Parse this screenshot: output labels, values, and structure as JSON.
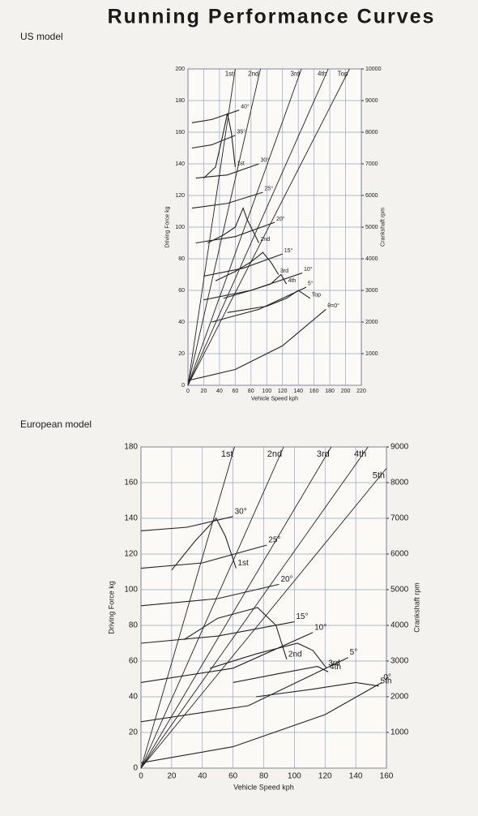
{
  "title": "Running Performance Curves",
  "chart_data": [
    {
      "type": "line",
      "title": "US model",
      "x_label": "Vehicle Speed kph",
      "y_label": "Driving Force kg",
      "y2_label": "Crankshaft rpm",
      "xlim": [
        0,
        220
      ],
      "xticks": [
        0,
        20,
        40,
        60,
        80,
        100,
        120,
        140,
        160,
        180,
        200,
        220
      ],
      "ylim": [
        0,
        200
      ],
      "yticks": [
        0,
        20,
        40,
        60,
        80,
        100,
        120,
        140,
        160,
        180,
        200
      ],
      "y2lim": [
        0,
        10000
      ],
      "y2ticks": [
        1000,
        2000,
        3000,
        4000,
        5000,
        6000,
        7000,
        8000,
        9000,
        10000
      ],
      "grid": true,
      "color": "#222222",
      "series": [
        {
          "name": "1st",
          "axis": "y2",
          "x": [
            0,
            60
          ],
          "values": [
            0,
            10000
          ]
        },
        {
          "name": "2nd",
          "axis": "y2",
          "x": [
            0,
            92
          ],
          "values": [
            0,
            10000
          ]
        },
        {
          "name": "3rd",
          "axis": "y2",
          "x": [
            0,
            144
          ],
          "values": [
            0,
            10000
          ]
        },
        {
          "name": "4th",
          "axis": "y2",
          "x": [
            0,
            178
          ],
          "values": [
            0,
            10000
          ]
        },
        {
          "name": "Top",
          "axis": "y2",
          "x": [
            0,
            205
          ],
          "values": [
            0,
            10000
          ]
        },
        {
          "name": "40°",
          "x": [
            5,
            30,
            65
          ],
          "values": [
            166,
            168,
            174
          ]
        },
        {
          "name": "35°",
          "x": [
            5,
            30,
            60
          ],
          "values": [
            150,
            152,
            158
          ]
        },
        {
          "name": "30°",
          "x": [
            10,
            50,
            90
          ],
          "values": [
            131,
            133,
            140
          ]
        },
        {
          "name": "25°",
          "x": [
            5,
            50,
            95
          ],
          "values": [
            112,
            115,
            122
          ]
        },
        {
          "name": "20°",
          "x": [
            10,
            60,
            110
          ],
          "values": [
            90,
            94,
            103
          ]
        },
        {
          "name": "15°",
          "x": [
            20,
            70,
            120
          ],
          "values": [
            69,
            74,
            83
          ]
        },
        {
          "name": "10°",
          "x": [
            20,
            80,
            145
          ],
          "values": [
            54,
            60,
            71
          ]
        },
        {
          "name": "5°",
          "x": [
            30,
            90,
            150
          ],
          "values": [
            40,
            48,
            62
          ]
        },
        {
          "name": "θ=0°",
          "x": [
            0,
            60,
            120,
            175
          ],
          "values": [
            3,
            10,
            25,
            48
          ]
        },
        {
          "name": "1st",
          "x": [
            20,
            35,
            45,
            50,
            55,
            60
          ],
          "values": [
            131,
            138,
            160,
            172,
            160,
            138
          ]
        },
        {
          "name": "2nd",
          "x": [
            25,
            45,
            60,
            70,
            75,
            90
          ],
          "values": [
            90,
            95,
            100,
            112,
            105,
            90
          ]
        },
        {
          "name": "3rd",
          "x": [
            35,
            60,
            80,
            95,
            105,
            115
          ],
          "values": [
            66,
            72,
            78,
            84,
            78,
            70
          ]
        },
        {
          "name": "4th",
          "x": [
            45,
            80,
            105,
            118,
            125
          ],
          "values": [
            55,
            60,
            64,
            70,
            64
          ]
        },
        {
          "name": "Top",
          "x": [
            50,
            100,
            125,
            140,
            155
          ],
          "values": [
            46,
            50,
            55,
            60,
            55
          ]
        }
      ]
    },
    {
      "type": "line",
      "title": "European model",
      "x_label": "Vehicle Speed kph",
      "y_label": "Driving Force kg",
      "y2_label": "Crankshaft rpm",
      "xlim": [
        0,
        160
      ],
      "xticks": [
        0,
        20,
        40,
        60,
        80,
        100,
        120,
        140,
        160
      ],
      "ylim": [
        0,
        180
      ],
      "yticks": [
        0,
        20,
        40,
        60,
        80,
        100,
        120,
        140,
        160,
        180
      ],
      "y2lim": [
        0,
        9000
      ],
      "y2ticks": [
        1000,
        2000,
        3000,
        4000,
        5000,
        6000,
        7000,
        8000,
        9000
      ],
      "grid": true,
      "color": "#222222",
      "series": [
        {
          "name": "1st",
          "axis": "y2",
          "x": [
            0,
            61
          ],
          "values": [
            0,
            9000
          ]
        },
        {
          "name": "2nd",
          "axis": "y2",
          "x": [
            0,
            93
          ],
          "values": [
            0,
            9000
          ]
        },
        {
          "name": "3rd",
          "axis": "y2",
          "x": [
            0,
            124
          ],
          "values": [
            0,
            9000
          ]
        },
        {
          "name": "4th",
          "axis": "y2",
          "x": [
            0,
            148
          ],
          "values": [
            0,
            9000
          ]
        },
        {
          "name": "5th",
          "axis": "y2",
          "x": [
            0,
            160
          ],
          "values": [
            0,
            8400
          ]
        },
        {
          "name": "30°",
          "x": [
            0,
            30,
            60
          ],
          "values": [
            133,
            135,
            141
          ]
        },
        {
          "name": "25°",
          "x": [
            0,
            40,
            82
          ],
          "values": [
            112,
            115,
            125
          ]
        },
        {
          "name": "20°",
          "x": [
            0,
            50,
            90
          ],
          "values": [
            91,
            95,
            103
          ]
        },
        {
          "name": "15°",
          "x": [
            0,
            50,
            100
          ],
          "values": [
            70,
            74,
            82
          ]
        },
        {
          "name": "10°",
          "x": [
            0,
            60,
            112
          ],
          "values": [
            48,
            56,
            76
          ]
        },
        {
          "name": "5°",
          "x": [
            0,
            70,
            135
          ],
          "values": [
            26,
            35,
            62
          ]
        },
        {
          "name": "0°",
          "x": [
            0,
            60,
            120,
            157
          ],
          "values": [
            3,
            12,
            30,
            48
          ]
        },
        {
          "name": "1st",
          "x": [
            20,
            35,
            49,
            55,
            62
          ],
          "values": [
            111,
            127,
            140,
            130,
            112
          ]
        },
        {
          "name": "2nd",
          "x": [
            28,
            50,
            76,
            88,
            95
          ],
          "values": [
            72,
            84,
            90,
            80,
            61
          ]
        },
        {
          "name": "3rd",
          "x": [
            45,
            75,
            102,
            112,
            121
          ],
          "values": [
            56,
            64,
            70,
            66,
            56
          ]
        },
        {
          "name": "4th",
          "x": [
            60,
            90,
            115,
            122
          ],
          "values": [
            48,
            53,
            57,
            54
          ]
        },
        {
          "name": "5th",
          "x": [
            75,
            110,
            140,
            155
          ],
          "values": [
            40,
            44,
            48,
            46
          ]
        }
      ]
    }
  ]
}
